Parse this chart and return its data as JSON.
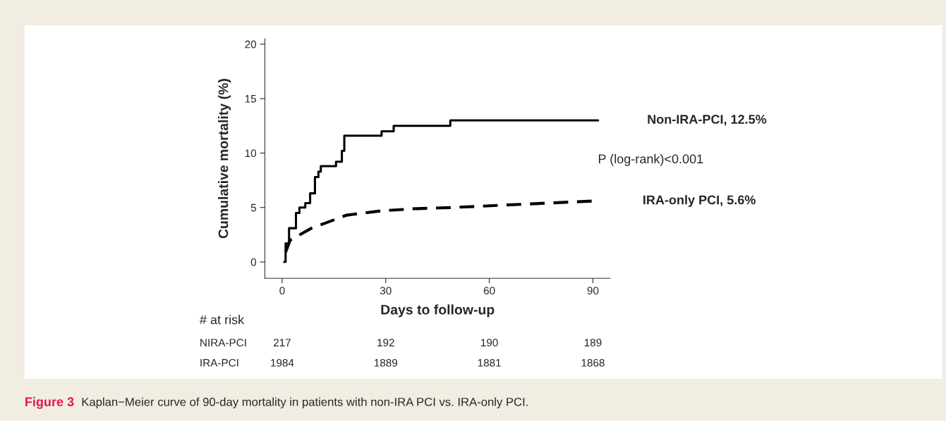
{
  "chart_data": {
    "type": "step",
    "xlabel": "Days to follow-up",
    "ylabel": "Cumulative mortality (%)",
    "xlim": [
      -5,
      95
    ],
    "ylim": [
      -1.5,
      20.5
    ],
    "xticks": [
      0,
      30,
      60,
      90
    ],
    "yticks": [
      0,
      5,
      10,
      15,
      20
    ],
    "grid": false,
    "legend": false,
    "series": [
      {
        "name": "Non-IRA-PCI, 12.5%",
        "color": "#000000",
        "line_style": "solid",
        "x": [
          0.6,
          1.0,
          2.0,
          4.0,
          5.0,
          6.7,
          8.1,
          9.5,
          10.5,
          11.2,
          15.6,
          17.3,
          18.0,
          28.8,
          32.3,
          48.7,
          91.5
        ],
        "values": [
          0,
          1.7,
          3.1,
          4.5,
          5.0,
          5.4,
          6.3,
          7.8,
          8.3,
          8.8,
          9.2,
          10.2,
          11.6,
          12.0,
          12.5,
          13.0,
          13.0
        ]
      },
      {
        "name": "IRA-only PCI, 5.6%",
        "type": "line",
        "color": "#000000",
        "line_style": "dashed",
        "x": [
          1.0,
          2.3,
          8.5,
          15.3,
          18.7,
          28.9,
          39.1,
          49.3,
          63.0,
          76.6,
          90.2
        ],
        "values": [
          0.9,
          2.0,
          3.1,
          3.9,
          4.3,
          4.7,
          4.9,
          5.0,
          5.2,
          5.4,
          5.6
        ]
      }
    ],
    "annotations": [
      "P (log-rank)<0.001",
      "# at risk",
      "NIRA-PCI",
      "217",
      "192",
      "190",
      "189",
      "IRA-PCI",
      "1984",
      "1889",
      "1881",
      "1868",
      "Figure 3",
      "Kaplan−Meier curve of 90-day mortality in patients with non-IRA PCI vs. IRA-only PCI."
    ]
  }
}
